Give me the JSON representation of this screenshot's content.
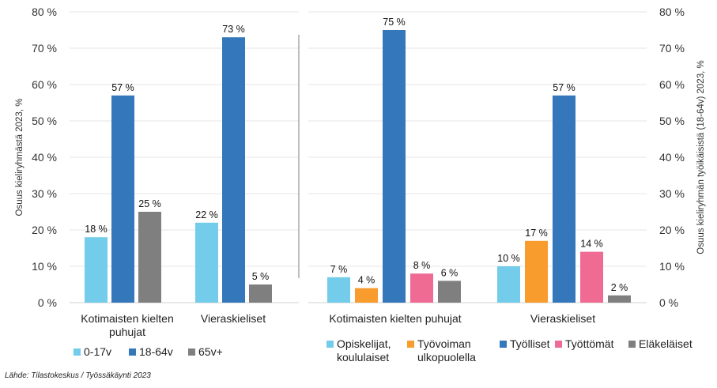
{
  "chart_data": [
    {
      "type": "bar",
      "ylabel": "Osuus kieliryhmästä 2023, %",
      "ylim": [
        0,
        80
      ],
      "yticks": [
        "0 %",
        "10 %",
        "20 %",
        "30 %",
        "40 %",
        "50 %",
        "60 %",
        "70 %",
        "80 %"
      ],
      "grid": true,
      "legend_position": "bottom",
      "categories": [
        [
          "Kotimaisten kielten",
          "puhujat"
        ],
        [
          "Vieraskieliset"
        ]
      ],
      "series": [
        {
          "name": [
            "0-17v"
          ],
          "color": "#73CDEA",
          "values": [
            18,
            22
          ],
          "labels": [
            "18 %",
            "22 %"
          ]
        },
        {
          "name": [
            "18-64v"
          ],
          "color": "#3477BA",
          "values": [
            57,
            73
          ],
          "labels": [
            "57 %",
            "73 %"
          ]
        },
        {
          "name": [
            "65v+"
          ],
          "color": "#7F7F7F",
          "values": [
            25,
            5
          ],
          "labels": [
            "25 %",
            "5 %"
          ]
        }
      ]
    },
    {
      "type": "bar",
      "ylabel": "Osuus kieliryhmän työikäisistä (18-64v) 2023, %",
      "ylim": [
        0,
        80
      ],
      "yticks": [
        "0 %",
        "10 %",
        "20 %",
        "30 %",
        "40 %",
        "50 %",
        "60 %",
        "70 %",
        "80 %"
      ],
      "grid": true,
      "legend_position": "bottom",
      "categories": [
        [
          "Kotimaisten kielten puhujat"
        ],
        [
          "Vieraskieliset"
        ]
      ],
      "series": [
        {
          "name": [
            "Opiskelijat,",
            "koululaiset"
          ],
          "color": "#73CDEA",
          "values": [
            7,
            10
          ],
          "labels": [
            "7 %",
            "10 %"
          ]
        },
        {
          "name": [
            "Työvoiman",
            "ulkopuolella"
          ],
          "color": "#F89C2D",
          "values": [
            4,
            17
          ],
          "labels": [
            "4 %",
            "17 %"
          ]
        },
        {
          "name": [
            "Työlliset"
          ],
          "color": "#3477BA",
          "values": [
            75,
            57
          ],
          "labels": [
            "75 %",
            "57 %"
          ]
        },
        {
          "name": [
            "Työttömät"
          ],
          "color": "#EF6B94",
          "values": [
            8,
            14
          ],
          "labels": [
            "8 %",
            "14 %"
          ]
        },
        {
          "name": [
            "Eläkeläiset"
          ],
          "color": "#7F7F7F",
          "values": [
            6,
            2
          ],
          "labels": [
            "6 %",
            "2 %"
          ]
        }
      ]
    }
  ],
  "source": "Lähde: Tilastokeskus / Työssäkäynti 2023"
}
